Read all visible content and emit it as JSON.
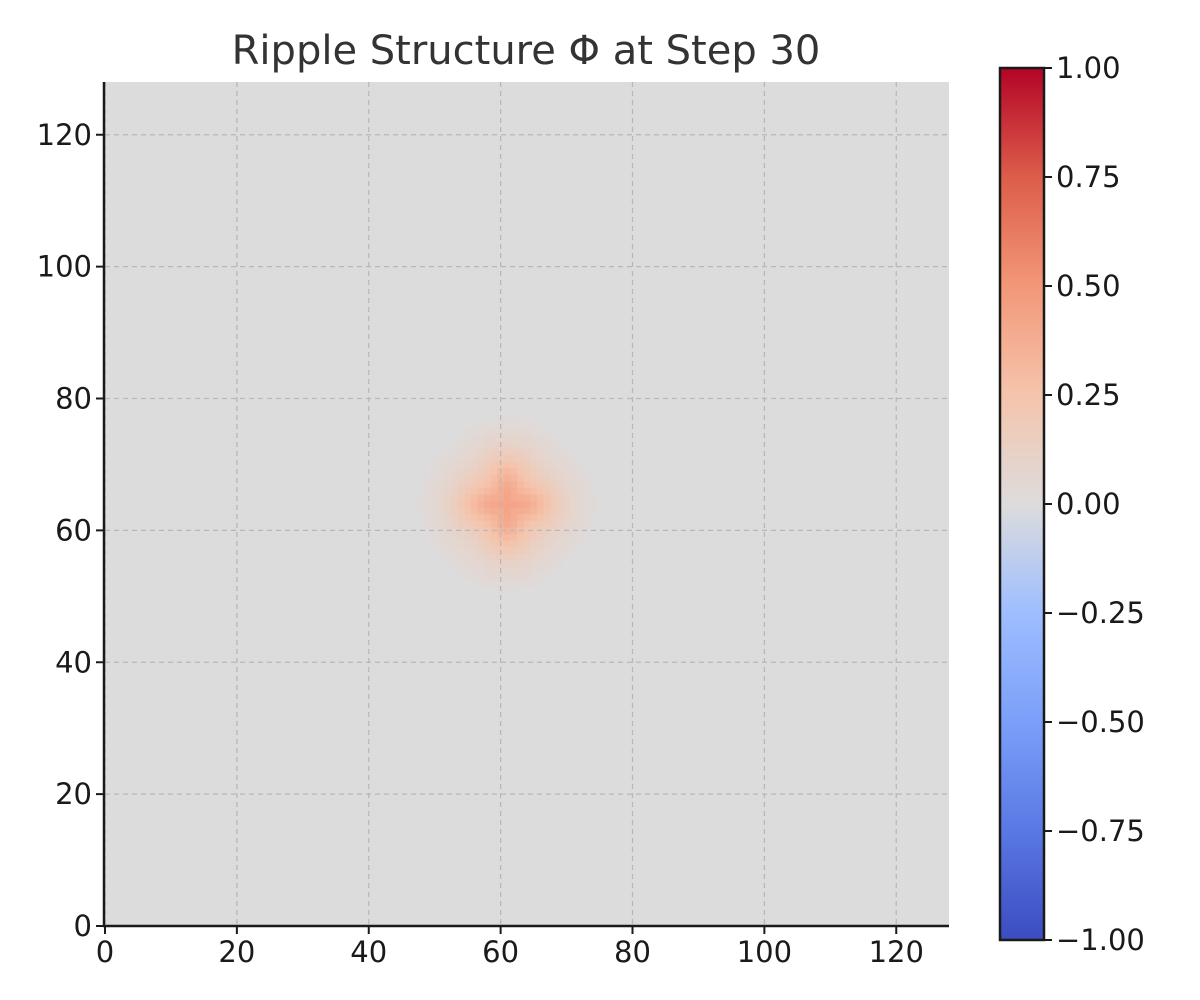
{
  "chart_data": {
    "type": "heatmap",
    "title": "Ripple Structure Φ at Step 30",
    "xlabel": "",
    "ylabel": "",
    "xlim": [
      0,
      128
    ],
    "ylim": [
      0,
      128
    ],
    "x_ticks": [
      0,
      20,
      40,
      60,
      80,
      100,
      120
    ],
    "y_ticks": [
      0,
      20,
      40,
      60,
      80,
      100,
      120
    ],
    "x_tick_labels": [
      "0",
      "20",
      "40",
      "60",
      "80",
      "100",
      "120"
    ],
    "y_tick_labels": [
      "0",
      "20",
      "40",
      "60",
      "80",
      "100",
      "120"
    ],
    "grid": true,
    "grid_color": "#b8b8b8",
    "background_value": 0.0,
    "field": {
      "description_of_values": "scalar field Φ on a 128x128 grid, near zero except a localized positive bump",
      "peak_center": [
        61,
        64
      ],
      "peak_value": 0.42,
      "extent_radius": 12
    },
    "colorbar": {
      "colormap": "coolwarm",
      "vmin": -1.0,
      "vmax": 1.0,
      "ticks": [
        1.0,
        0.75,
        0.5,
        0.25,
        0.0,
        -0.25,
        -0.5,
        -0.75,
        -1.0
      ],
      "tick_labels": [
        "1.00",
        "0.75",
        "0.50",
        "0.25",
        "0.00",
        "−0.25",
        "−0.50",
        "−0.75",
        "−1.00"
      ],
      "low_color": "#3b4cc0",
      "mid_color": "#dddcdc",
      "high_color": "#b40426"
    }
  }
}
